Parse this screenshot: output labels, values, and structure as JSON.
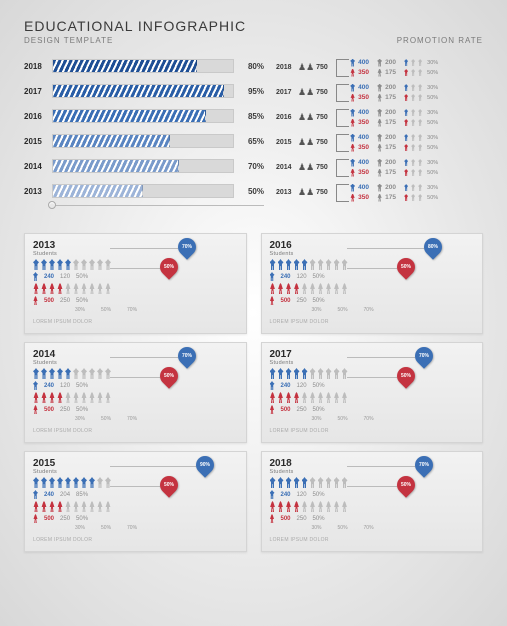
{
  "header": {
    "title": "EDUCATIONAL INFOGRAPHIC",
    "sub_left": "DESIGN TEMPLATE",
    "sub_right": "PROMOTION RATE"
  },
  "colors": {
    "blue": "#3b6fb5",
    "blue_dark": "#1f4f95",
    "red": "#c43340",
    "grey": "#bdbdbd",
    "grey_dark": "#8d8d8d",
    "text_muted": "#9a9a9a"
  },
  "barchart": {
    "rows": [
      {
        "year": "2018",
        "pct": 80,
        "color": "#1f4f95"
      },
      {
        "year": "2017",
        "pct": 95,
        "color": "#2a5ea6"
      },
      {
        "year": "2016",
        "pct": 85,
        "color": "#3b6fb5"
      },
      {
        "year": "2015",
        "pct": 65,
        "color": "#5a85c1"
      },
      {
        "year": "2014",
        "pct": 70,
        "color": "#7a9bcb"
      },
      {
        "year": "2013",
        "pct": 50,
        "color": "#9db4d8"
      }
    ]
  },
  "splits": {
    "rows": [
      {
        "year": "2018",
        "total": 750,
        "male": {
          "n": 400,
          "sub": 200,
          "pct": "30%",
          "color": "#3b6fb5"
        },
        "female": {
          "n": 350,
          "sub": 175,
          "pct": "50%",
          "color": "#c43340"
        }
      },
      {
        "year": "2017",
        "total": 750,
        "male": {
          "n": 400,
          "sub": 200,
          "pct": "30%",
          "color": "#3b6fb5"
        },
        "female": {
          "n": 350,
          "sub": 175,
          "pct": "50%",
          "color": "#c43340"
        }
      },
      {
        "year": "2016",
        "total": 750,
        "male": {
          "n": 400,
          "sub": 200,
          "pct": "30%",
          "color": "#3b6fb5"
        },
        "female": {
          "n": 350,
          "sub": 175,
          "pct": "50%",
          "color": "#c43340"
        }
      },
      {
        "year": "2015",
        "total": 750,
        "male": {
          "n": 400,
          "sub": 200,
          "pct": "30%",
          "color": "#3b6fb5"
        },
        "female": {
          "n": 350,
          "sub": 175,
          "pct": "50%",
          "color": "#c43340"
        }
      },
      {
        "year": "2014",
        "total": 750,
        "male": {
          "n": 400,
          "sub": 200,
          "pct": "30%",
          "color": "#3b6fb5"
        },
        "female": {
          "n": 350,
          "sub": 175,
          "pct": "50%",
          "color": "#c43340"
        }
      },
      {
        "year": "2013",
        "total": 750,
        "male": {
          "n": 400,
          "sub": 200,
          "pct": "30%",
          "color": "#3b6fb5"
        },
        "female": {
          "n": 350,
          "sub": 175,
          "pct": "50%",
          "color": "#c43340"
        }
      }
    ]
  },
  "cards": {
    "lorem": "LOREM IPSUM DOLOR",
    "ticks": [
      "30%",
      "50%",
      "70%"
    ],
    "items": [
      {
        "year": "2013",
        "students_label": "Students",
        "blue_pin": "70%",
        "red_pin": "50%",
        "male": {
          "v": 240,
          "sub": 120,
          "pct": "50%",
          "ppl_fill": 5,
          "ppl_total": 10
        },
        "female": {
          "v": 500,
          "sub": 250,
          "pct": "50%",
          "ppl_fill": 4,
          "ppl_total": 10
        }
      },
      {
        "year": "2016",
        "students_label": "Students",
        "blue_pin": "80%",
        "red_pin": "50%",
        "male": {
          "v": 240,
          "sub": 120,
          "pct": "50%",
          "ppl_fill": 5,
          "ppl_total": 10
        },
        "female": {
          "v": 500,
          "sub": 250,
          "pct": "50%",
          "ppl_fill": 4,
          "ppl_total": 10
        }
      },
      {
        "year": "2014",
        "students_label": "Students",
        "blue_pin": "70%",
        "red_pin": "50%",
        "male": {
          "v": 240,
          "sub": 120,
          "pct": "50%",
          "ppl_fill": 5,
          "ppl_total": 10
        },
        "female": {
          "v": 500,
          "sub": 250,
          "pct": "50%",
          "ppl_fill": 4,
          "ppl_total": 10
        }
      },
      {
        "year": "2017",
        "students_label": "Students",
        "blue_pin": "70%",
        "red_pin": "50%",
        "male": {
          "v": 240,
          "sub": 120,
          "pct": "50%",
          "ppl_fill": 5,
          "ppl_total": 10
        },
        "female": {
          "v": 500,
          "sub": 250,
          "pct": "50%",
          "ppl_fill": 4,
          "ppl_total": 10
        }
      },
      {
        "year": "2015",
        "students_label": "Students",
        "blue_pin": "90%",
        "red_pin": "50%",
        "male": {
          "v": 240,
          "sub": 204,
          "pct": "85%",
          "ppl_fill": 8,
          "ppl_total": 10
        },
        "female": {
          "v": 500,
          "sub": 250,
          "pct": "50%",
          "ppl_fill": 4,
          "ppl_total": 10
        }
      },
      {
        "year": "2018",
        "students_label": "Students",
        "blue_pin": "70%",
        "red_pin": "50%",
        "male": {
          "v": 240,
          "sub": 120,
          "pct": "50%",
          "ppl_fill": 5,
          "ppl_total": 10
        },
        "female": {
          "v": 500,
          "sub": 250,
          "pct": "50%",
          "ppl_fill": 4,
          "ppl_total": 10
        }
      }
    ]
  }
}
